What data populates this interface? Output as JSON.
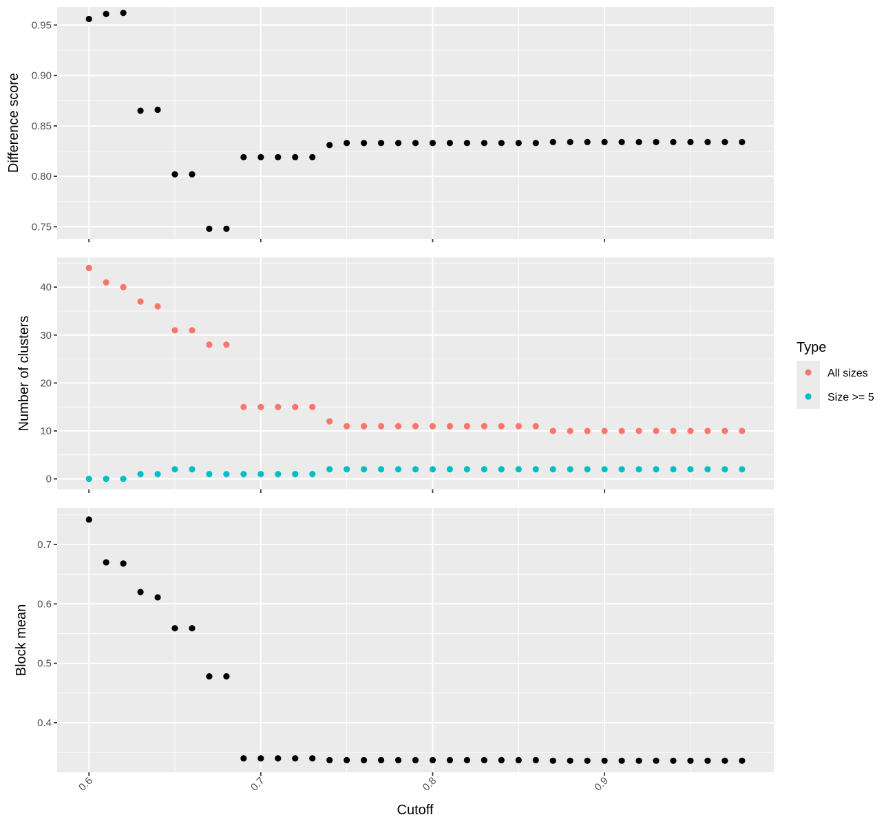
{
  "chart_data": {
    "type": "scatter",
    "x": [
      0.6,
      0.61,
      0.62,
      0.63,
      0.64,
      0.65,
      0.66,
      0.67,
      0.68,
      0.69,
      0.7,
      0.71,
      0.72,
      0.73,
      0.74,
      0.75,
      0.76,
      0.77,
      0.78,
      0.79,
      0.8,
      0.81,
      0.82,
      0.83,
      0.84,
      0.85,
      0.86,
      0.87,
      0.88,
      0.89,
      0.9,
      0.91,
      0.92,
      0.93,
      0.94,
      0.95,
      0.96,
      0.97,
      0.98
    ],
    "xlabel": "Cutoff",
    "xticks": [
      "0.6",
      "0.7",
      "0.8",
      "0.9"
    ],
    "xtick_values": [
      0.6,
      0.7,
      0.8,
      0.9
    ],
    "xlim": [
      0.5815,
      0.9985
    ],
    "grid": true,
    "legend": {
      "title": "Type",
      "placement": "right",
      "entries": [
        {
          "label": "All sizes",
          "color": "#F8766D"
        },
        {
          "label": "Size >= 5",
          "color": "#00BFC4"
        }
      ]
    },
    "panels": [
      {
        "ylabel": "Difference score",
        "ylim": [
          0.738,
          0.968
        ],
        "yticks": [
          "0.75",
          "0.80",
          "0.85",
          "0.90",
          "0.95"
        ],
        "ytick_values": [
          0.75,
          0.8,
          0.85,
          0.9,
          0.95
        ],
        "series": [
          {
            "color": "#000000",
            "values": [
              0.956,
              0.961,
              0.962,
              0.865,
              0.866,
              0.802,
              0.802,
              0.748,
              0.748,
              0.819,
              0.819,
              0.819,
              0.819,
              0.819,
              0.831,
              0.833,
              0.833,
              0.833,
              0.833,
              0.833,
              0.833,
              0.833,
              0.833,
              0.833,
              0.833,
              0.833,
              0.833,
              0.834,
              0.834,
              0.834,
              0.834,
              0.834,
              0.834,
              0.834,
              0.834,
              0.834,
              0.834,
              0.834,
              0.834
            ]
          }
        ]
      },
      {
        "ylabel": "Number of clusters",
        "ylim": [
          -2.2,
          46.2
        ],
        "yticks": [
          "0",
          "10",
          "20",
          "30",
          "40"
        ],
        "ytick_values": [
          0,
          10,
          20,
          30,
          40
        ],
        "series": [
          {
            "name": "All sizes",
            "color": "#F8766D",
            "values": [
              44,
              41,
              40,
              37,
              36,
              31,
              31,
              28,
              28,
              15,
              15,
              15,
              15,
              15,
              12,
              11,
              11,
              11,
              11,
              11,
              11,
              11,
              11,
              11,
              11,
              11,
              11,
              10,
              10,
              10,
              10,
              10,
              10,
              10,
              10,
              10,
              10,
              10,
              10
            ]
          },
          {
            "name": "Size >= 5",
            "color": "#00BFC4",
            "values": [
              0,
              0,
              0,
              1,
              1,
              2,
              2,
              1,
              1,
              1,
              1,
              1,
              1,
              1,
              2,
              2,
              2,
              2,
              2,
              2,
              2,
              2,
              2,
              2,
              2,
              2,
              2,
              2,
              2,
              2,
              2,
              2,
              2,
              2,
              2,
              2,
              2,
              2,
              2
            ]
          }
        ]
      },
      {
        "ylabel": "Block mean",
        "ylim": [
          0.3165,
          0.7615
        ],
        "yticks": [
          "0.4",
          "0.5",
          "0.6",
          "0.7"
        ],
        "ytick_values": [
          0.4,
          0.5,
          0.6,
          0.7
        ],
        "series": [
          {
            "color": "#000000",
            "values": [
              0.742,
              0.67,
              0.668,
              0.62,
              0.611,
              0.559,
              0.559,
              0.478,
              0.478,
              0.34,
              0.34,
              0.34,
              0.34,
              0.34,
              0.337,
              0.337,
              0.337,
              0.337,
              0.337,
              0.337,
              0.337,
              0.337,
              0.337,
              0.337,
              0.337,
              0.337,
              0.337,
              0.336,
              0.336,
              0.336,
              0.336,
              0.336,
              0.336,
              0.336,
              0.336,
              0.336,
              0.336,
              0.336,
              0.336
            ]
          }
        ]
      }
    ]
  }
}
